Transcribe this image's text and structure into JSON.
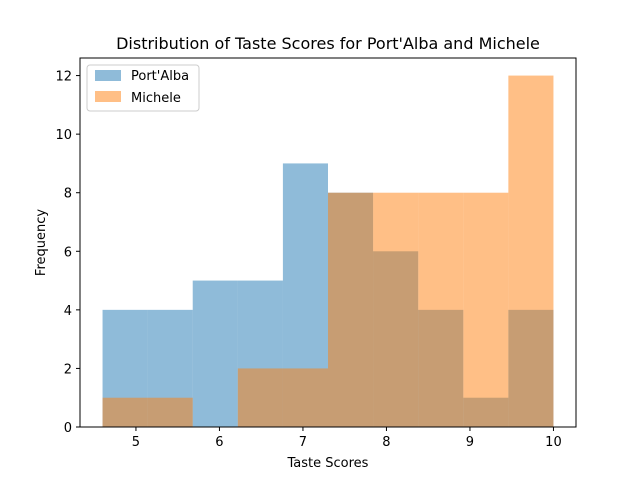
{
  "chart_data": {
    "type": "bar",
    "subtype": "overlapping-histogram",
    "title": "Distribution of Taste Scores for Port'Alba and Michele",
    "xlabel": "Taste Scores",
    "ylabel": "Frequency",
    "xlim": [
      4.33,
      10.27
    ],
    "ylim": [
      0,
      12.6
    ],
    "xticks": [
      5,
      6,
      7,
      8,
      9,
      10
    ],
    "yticks": [
      0,
      2,
      4,
      6,
      8,
      10,
      12
    ],
    "grid": false,
    "legend_position": "top-left",
    "series": [
      {
        "name": "Port'Alba",
        "color": "#1f77b4",
        "alpha": 0.5,
        "bin_edges": [
          4.6,
          5.14,
          5.68,
          6.22,
          6.76,
          7.3,
          7.84,
          8.38,
          8.92,
          9.46,
          10.0
        ],
        "counts": [
          4,
          4,
          5,
          5,
          9,
          8,
          6,
          4,
          1,
          4
        ]
      },
      {
        "name": "Michele",
        "color": "#ff7f0e",
        "alpha": 0.5,
        "bin_edges": [
          4.6,
          5.14,
          5.68,
          6.22,
          6.76,
          7.3,
          7.84,
          8.38,
          8.92,
          9.46,
          10.0
        ],
        "counts": [
          1,
          1,
          0,
          2,
          2,
          8,
          8,
          8,
          8,
          12
        ]
      }
    ]
  }
}
